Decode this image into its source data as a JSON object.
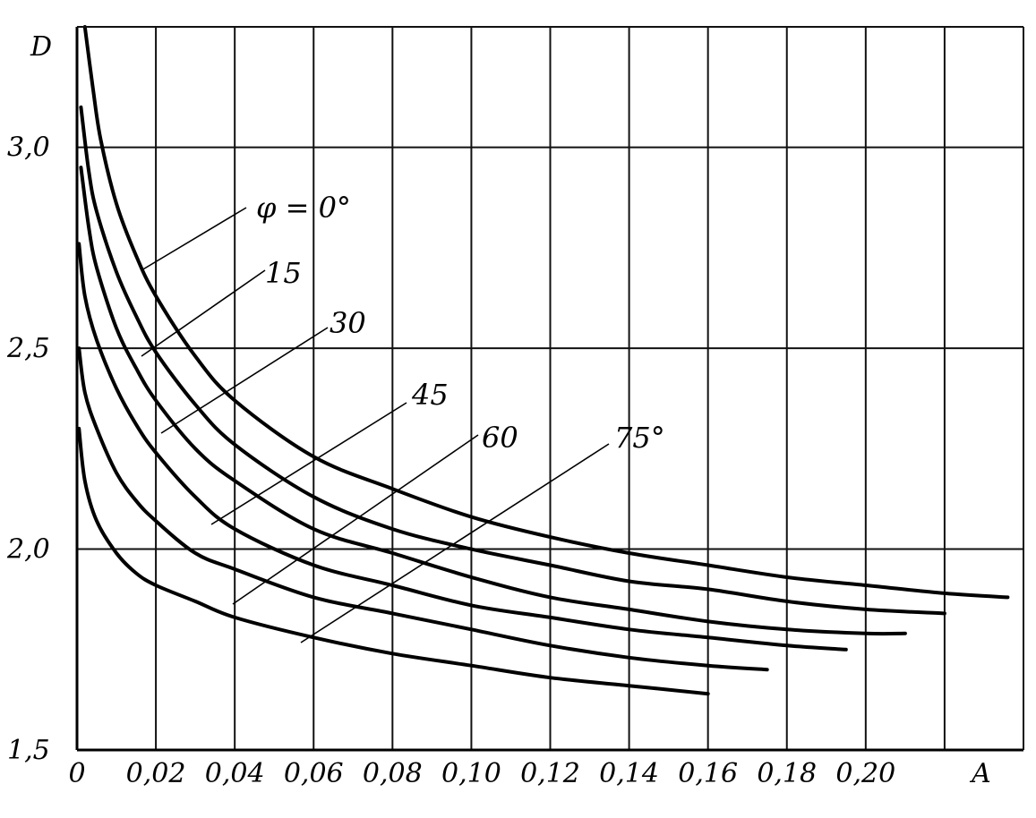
{
  "chart_data": {
    "type": "line",
    "title": "",
    "xlabel": "A",
    "ylabel": "D",
    "xlim": [
      0,
      0.24
    ],
    "ylim": [
      1.5,
      3.3
    ],
    "grid": true,
    "x_ticks": [
      0,
      0.02,
      0.04,
      0.06,
      0.08,
      0.1,
      0.12,
      0.14,
      0.16,
      0.18,
      0.2
    ],
    "x_tick_labels": [
      "0",
      "0,02",
      "0,04",
      "0,06",
      "0,08",
      "0,10",
      "0,12",
      "0,14",
      "0,16",
      "0,18",
      "0,20"
    ],
    "y_ticks": [
      1.5,
      2.0,
      2.5,
      3.0
    ],
    "y_tick_labels": [
      "1,5",
      "2,0",
      "2,5",
      "3,0"
    ],
    "series": [
      {
        "name": "φ = 0°",
        "x": [
          0.002,
          0.004,
          0.006,
          0.01,
          0.015,
          0.02,
          0.03,
          0.04,
          0.06,
          0.08,
          0.1,
          0.12,
          0.14,
          0.16,
          0.18,
          0.2,
          0.22,
          0.236
        ],
        "values": [
          3.3,
          3.15,
          3.02,
          2.86,
          2.73,
          2.63,
          2.48,
          2.37,
          2.23,
          2.15,
          2.08,
          2.03,
          1.99,
          1.96,
          1.93,
          1.91,
          1.89,
          1.88
        ]
      },
      {
        "name": "15",
        "x": [
          0.001,
          0.003,
          0.005,
          0.01,
          0.015,
          0.02,
          0.03,
          0.04,
          0.06,
          0.08,
          0.1,
          0.12,
          0.14,
          0.16,
          0.18,
          0.2,
          0.22
        ],
        "values": [
          3.1,
          2.94,
          2.84,
          2.69,
          2.58,
          2.49,
          2.36,
          2.26,
          2.13,
          2.05,
          2.0,
          1.96,
          1.92,
          1.9,
          1.87,
          1.85,
          1.84
        ]
      },
      {
        "name": "30",
        "x": [
          0.001,
          0.003,
          0.005,
          0.01,
          0.015,
          0.02,
          0.03,
          0.04,
          0.06,
          0.08,
          0.1,
          0.12,
          0.14,
          0.16,
          0.18,
          0.2,
          0.21
        ],
        "values": [
          2.95,
          2.8,
          2.7,
          2.55,
          2.45,
          2.37,
          2.25,
          2.17,
          2.05,
          1.99,
          1.93,
          1.88,
          1.85,
          1.82,
          1.8,
          1.79,
          1.79
        ]
      },
      {
        "name": "45",
        "x": [
          0.0005,
          0.002,
          0.005,
          0.01,
          0.015,
          0.02,
          0.03,
          0.04,
          0.06,
          0.08,
          0.1,
          0.12,
          0.14,
          0.16,
          0.18,
          0.195
        ],
        "values": [
          2.76,
          2.63,
          2.52,
          2.4,
          2.31,
          2.24,
          2.13,
          2.05,
          1.96,
          1.91,
          1.86,
          1.83,
          1.8,
          1.78,
          1.76,
          1.75
        ]
      },
      {
        "name": "60",
        "x": [
          0.0005,
          0.002,
          0.005,
          0.01,
          0.015,
          0.02,
          0.03,
          0.04,
          0.06,
          0.08,
          0.1,
          0.12,
          0.14,
          0.16,
          0.175
        ],
        "values": [
          2.5,
          2.39,
          2.3,
          2.19,
          2.12,
          2.07,
          1.99,
          1.95,
          1.88,
          1.84,
          1.8,
          1.76,
          1.73,
          1.71,
          1.7
        ]
      },
      {
        "name": "75°",
        "x": [
          0.0005,
          0.002,
          0.005,
          0.01,
          0.015,
          0.02,
          0.03,
          0.04,
          0.06,
          0.08,
          0.1,
          0.12,
          0.14,
          0.16
        ],
        "values": [
          2.3,
          2.17,
          2.07,
          1.99,
          1.94,
          1.91,
          1.87,
          1.83,
          1.78,
          1.74,
          1.71,
          1.68,
          1.66,
          1.64
        ]
      }
    ]
  }
}
